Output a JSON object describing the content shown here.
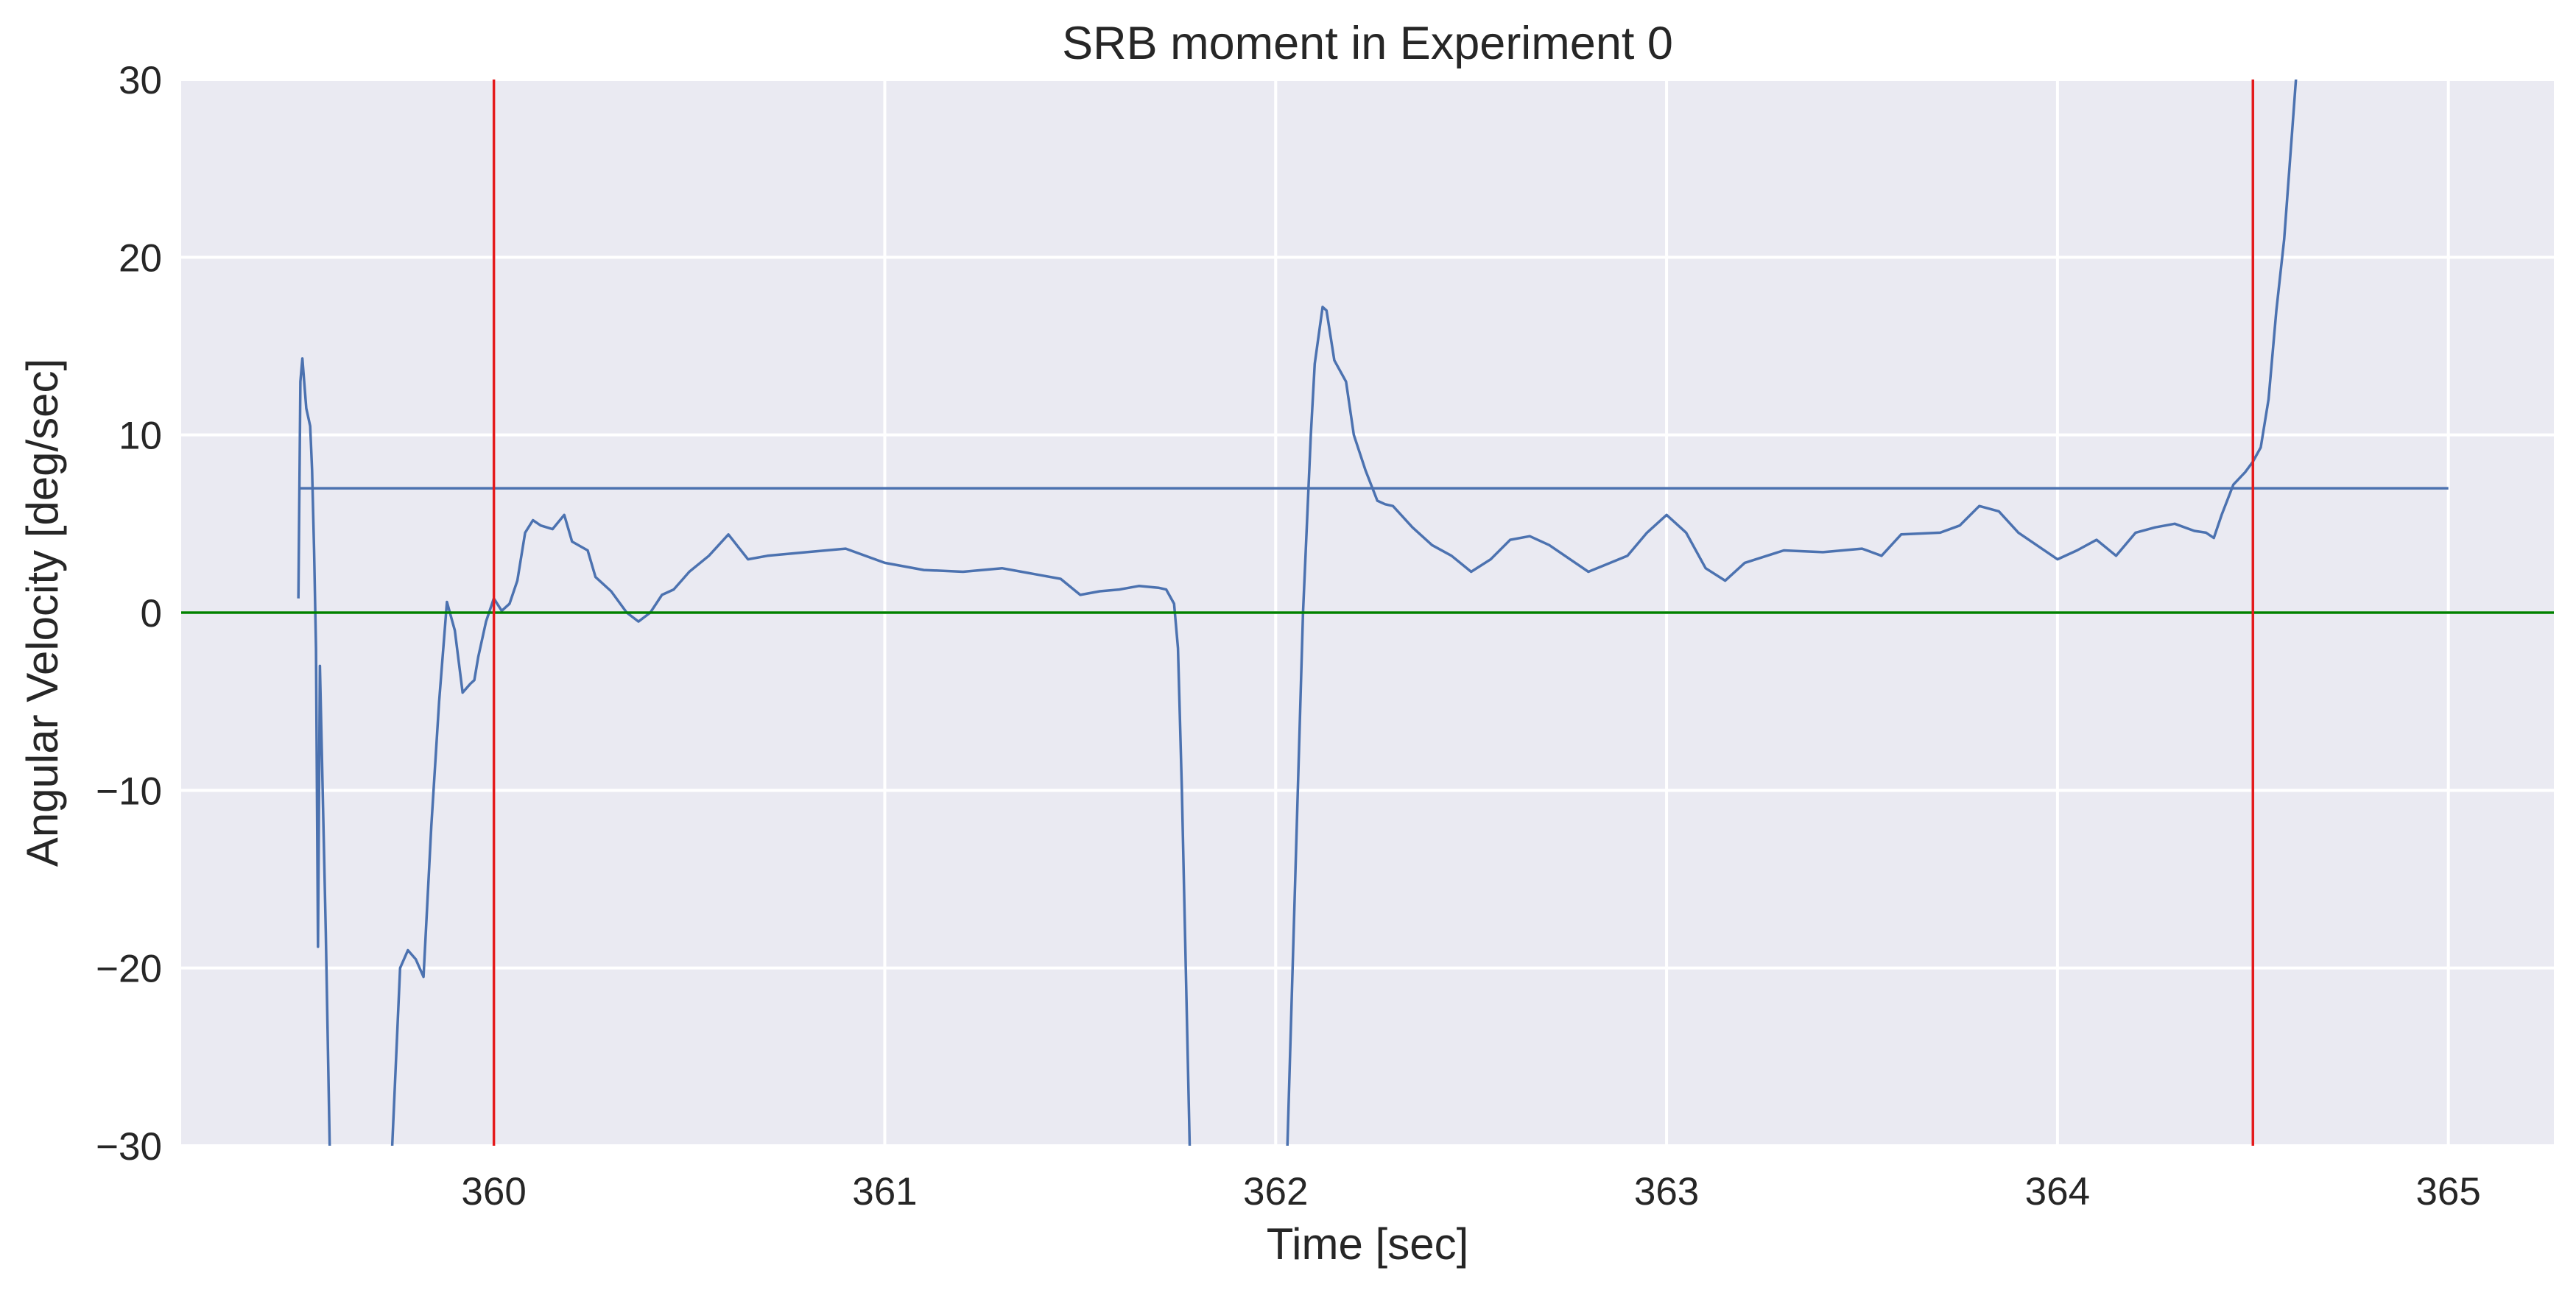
{
  "chart_data": {
    "type": "line",
    "title": "SRB moment in Experiment 0",
    "xlabel": "Time [sec]",
    "ylabel": "Angular Velocity [deg/sec]",
    "xlim": [
      359.2,
      365.27
    ],
    "ylim": [
      -30,
      30
    ],
    "xticks": [
      360,
      361,
      362,
      363,
      364,
      365
    ],
    "yticks": [
      -30,
      -20,
      -10,
      0,
      10,
      20,
      30
    ],
    "xtick_labels": [
      "360",
      "361",
      "362",
      "363",
      "364",
      "365"
    ],
    "ytick_labels": [
      "−30",
      "−20",
      "−10",
      "0",
      "10",
      "20",
      "30"
    ],
    "grid": true,
    "background": "#EAEAF2",
    "series": [
      {
        "color": "#4C72B0",
        "x": [
          359.5,
          359.505,
          359.51,
          359.52,
          359.53,
          359.535,
          359.54,
          359.545,
          359.55,
          359.555,
          359.56,
          359.57,
          359.58,
          359.6,
          359.64,
          359.7,
          359.74,
          359.76,
          359.78,
          359.8,
          359.82,
          359.84,
          359.86,
          359.88,
          359.9,
          359.92,
          359.94,
          359.95,
          359.96,
          359.98,
          360.0,
          360.02,
          360.04,
          360.06,
          360.08,
          360.1,
          360.12,
          360.15,
          360.18,
          360.2,
          360.24,
          360.26,
          360.3,
          360.34,
          360.37,
          360.4,
          360.43,
          360.46,
          360.48,
          360.5,
          360.55,
          360.6,
          360.65,
          360.7,
          360.8,
          360.9,
          361.0,
          361.1,
          361.2,
          361.3,
          361.4,
          361.45,
          361.5,
          361.55,
          361.6,
          361.65,
          361.7,
          361.72,
          361.74,
          361.75,
          361.76,
          361.77,
          361.78,
          361.8,
          361.9,
          362.0,
          362.03,
          362.05,
          362.07,
          362.09,
          362.1,
          362.12,
          362.13,
          362.15,
          362.18,
          362.2,
          362.23,
          362.26,
          362.28,
          362.3,
          362.35,
          362.4,
          362.45,
          362.5,
          362.55,
          362.6,
          362.65,
          362.7,
          362.8,
          362.9,
          362.95,
          363.0,
          363.05,
          363.1,
          363.15,
          363.2,
          363.3,
          363.4,
          363.5,
          363.55,
          363.6,
          363.7,
          363.75,
          363.8,
          363.85,
          363.9,
          364.0,
          364.05,
          364.1,
          364.15,
          364.2,
          364.25,
          364.3,
          364.35,
          364.38,
          364.4,
          364.42,
          364.45,
          364.48,
          364.5,
          364.52,
          364.54,
          364.56,
          364.58,
          364.6,
          364.61,
          364.62
        ],
        "y": [
          0.8,
          13.0,
          14.3,
          11.5,
          10.5,
          8.0,
          3.5,
          -2.0,
          -18.8,
          -3.0,
          -8.0,
          -18.0,
          -30.0,
          -34.0,
          -36.0,
          -33.0,
          -30.0,
          -20.0,
          -19.0,
          -19.5,
          -20.5,
          -12.0,
          -5.0,
          0.6,
          -1.0,
          -4.5,
          -4.0,
          -3.8,
          -2.5,
          -0.5,
          0.8,
          0.1,
          0.5,
          1.8,
          4.5,
          5.2,
          4.9,
          4.7,
          5.5,
          4.0,
          3.5,
          2.0,
          1.2,
          0.0,
          -0.5,
          0.0,
          1.0,
          1.3,
          1.8,
          2.3,
          3.2,
          4.4,
          3.0,
          3.2,
          3.4,
          3.6,
          2.8,
          2.4,
          2.3,
          2.5,
          2.1,
          1.9,
          1.0,
          1.2,
          1.3,
          1.5,
          1.4,
          1.3,
          0.5,
          -2.0,
          -10.0,
          -20.0,
          -30.0,
          -38.0,
          -40.0,
          -35.0,
          -30.0,
          -15.0,
          0.0,
          10.0,
          14.0,
          17.2,
          17.0,
          14.2,
          13.0,
          10.0,
          8.0,
          6.3,
          6.1,
          6.0,
          4.8,
          3.8,
          3.2,
          2.3,
          3.0,
          4.1,
          4.3,
          3.8,
          2.3,
          3.2,
          4.5,
          5.5,
          4.5,
          2.5,
          1.8,
          2.8,
          3.5,
          3.4,
          3.6,
          3.2,
          4.4,
          4.5,
          4.9,
          6.0,
          5.7,
          4.5,
          3.0,
          3.5,
          4.1,
          3.2,
          4.5,
          4.8,
          5.0,
          4.6,
          4.5,
          4.2,
          5.5,
          7.2,
          7.9,
          8.5,
          9.3,
          12.0,
          17.0,
          21.0,
          27.0,
          30.0,
          33.0
        ]
      },
      {
        "color": "#4C72B0",
        "x": [
          359.5,
          365.0
        ],
        "y": [
          7.0,
          7.0
        ]
      }
    ],
    "reference_lines": [
      {
        "orientation": "horizontal",
        "value": 0,
        "color": "#008000"
      },
      {
        "orientation": "vertical",
        "value": 360.0,
        "color": "#E41A1C"
      },
      {
        "orientation": "vertical",
        "value": 364.5,
        "color": "#E41A1C"
      }
    ]
  }
}
